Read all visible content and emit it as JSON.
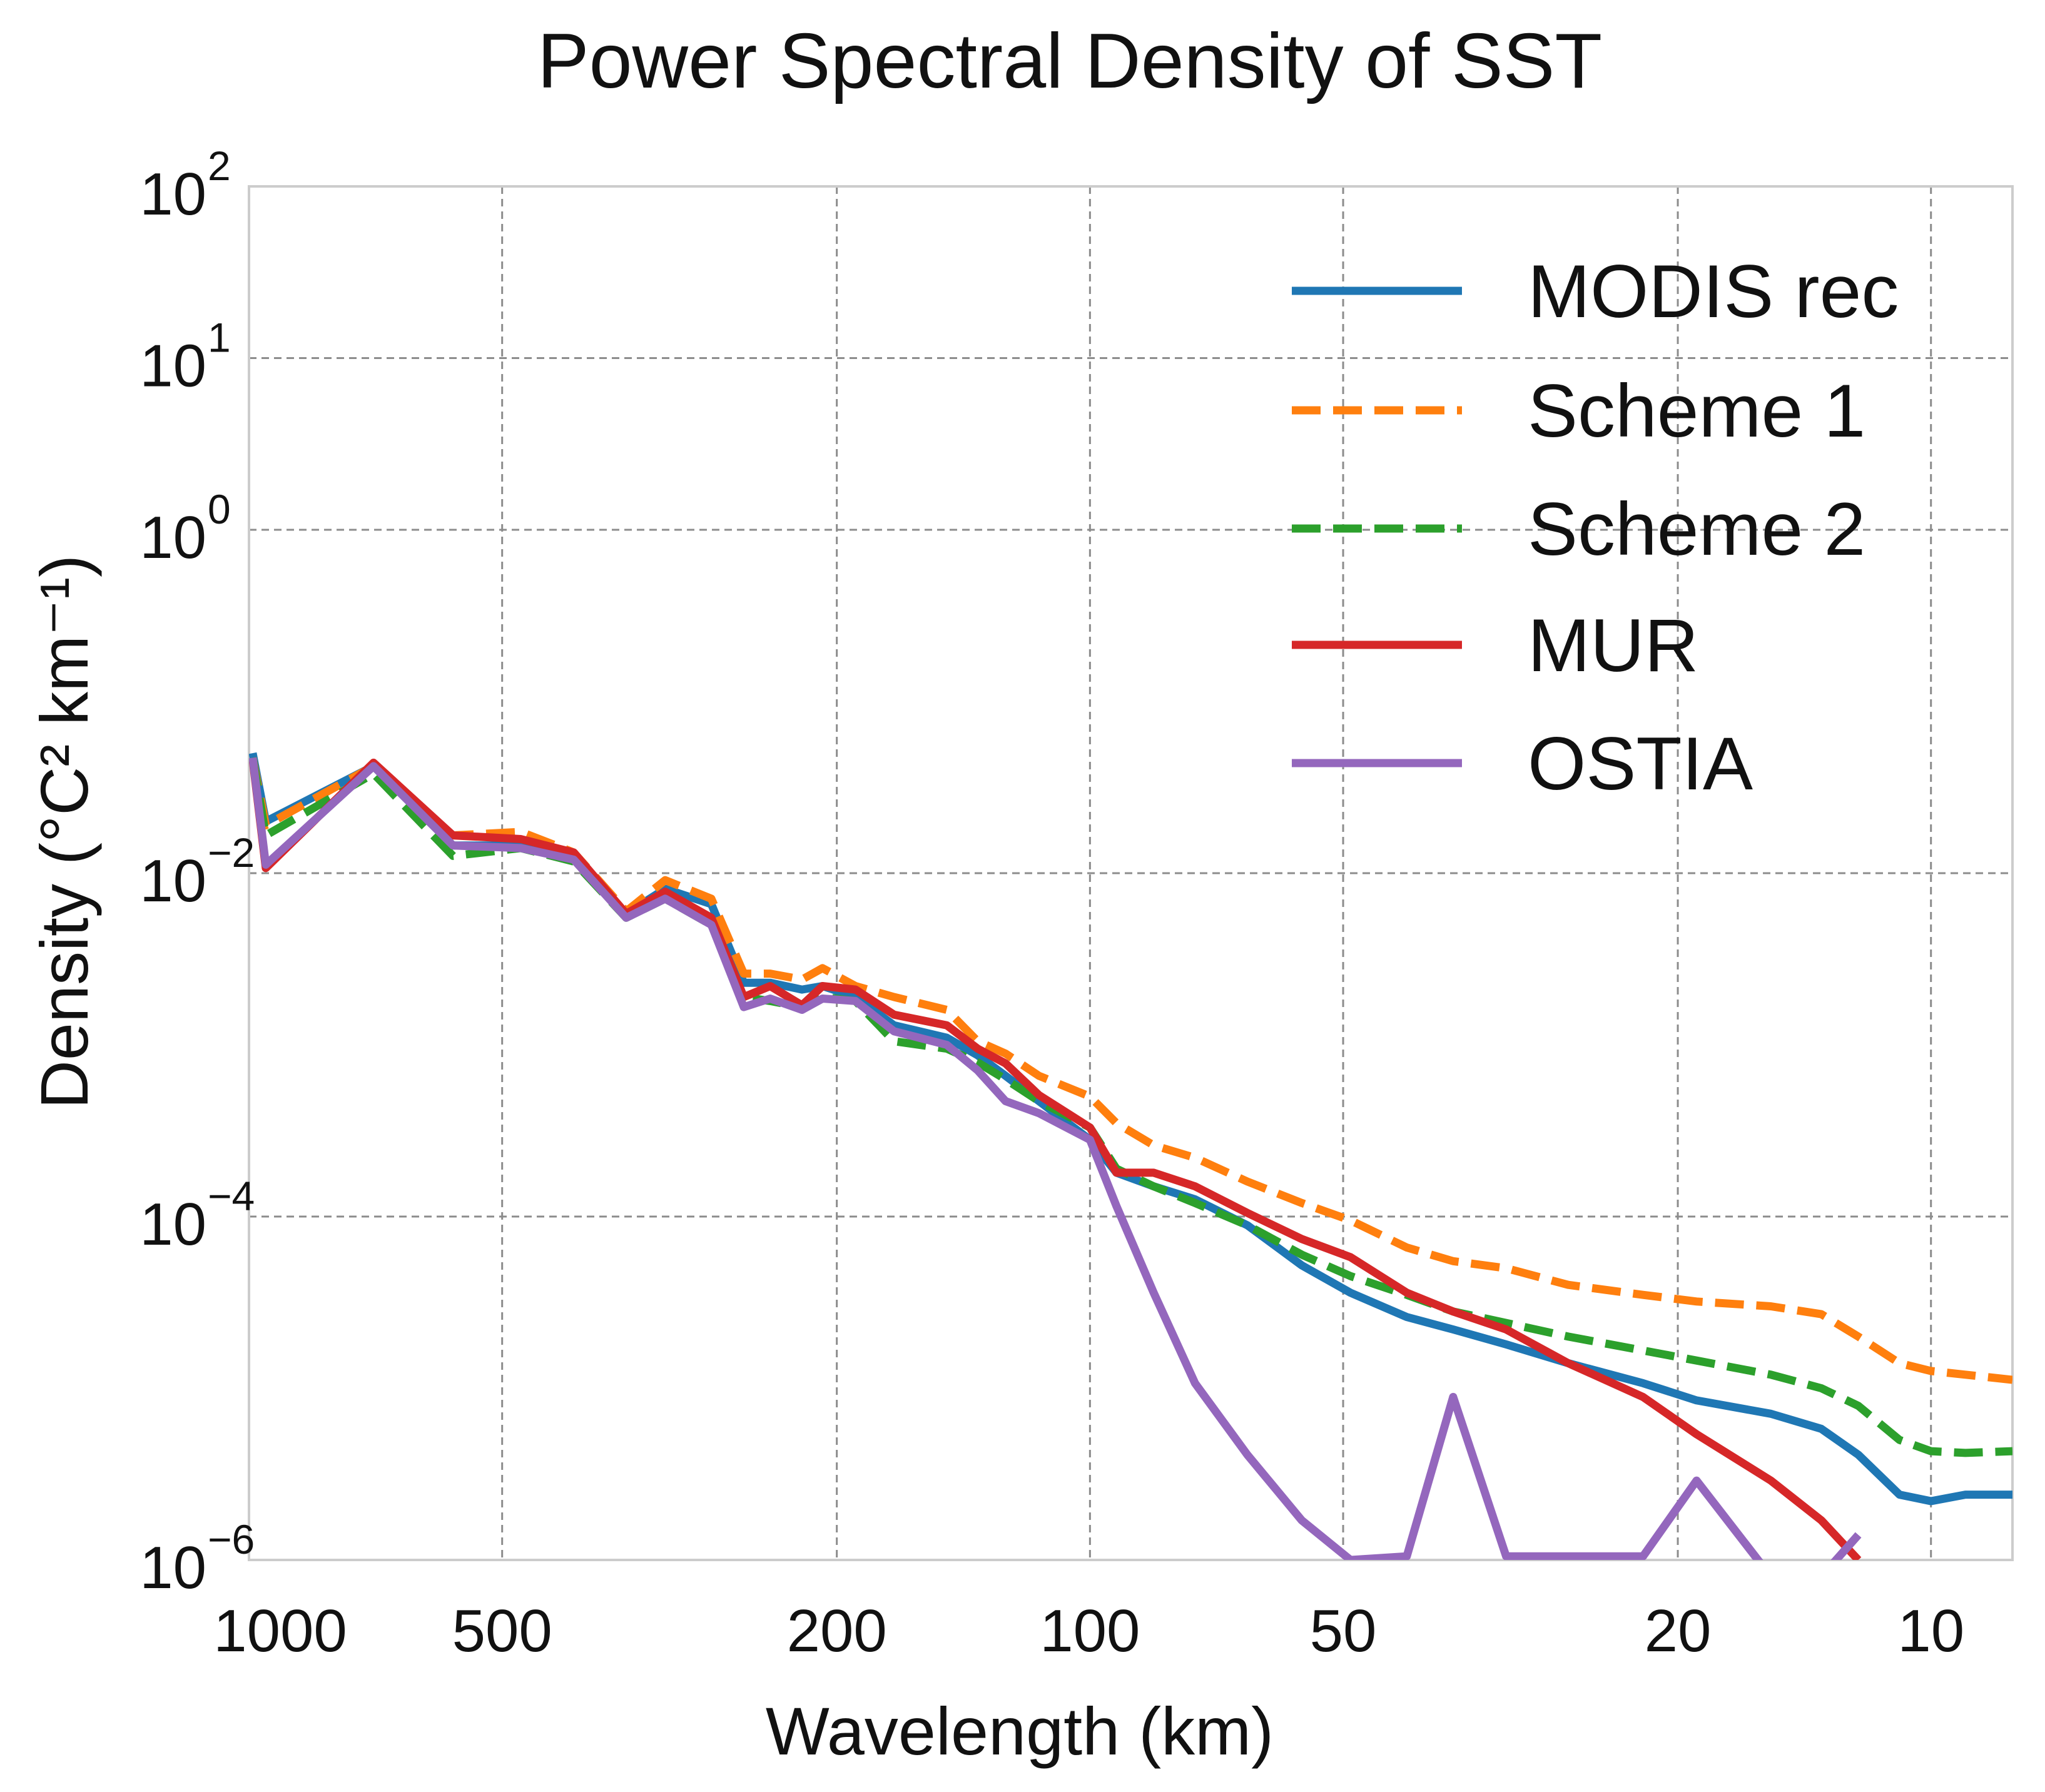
{
  "chart_data": {
    "type": "line",
    "title": "Power Spectral Density of SST",
    "xlabel": "Wavelength (km)",
    "ylabel": "Density (°C² km⁻¹)",
    "x_scale": "log",
    "x_reversed": true,
    "y_scale": "log",
    "xlim": [
      1000,
      8
    ],
    "ylim": [
      1e-06,
      100
    ],
    "grid": true,
    "legend_placement": "top-right",
    "x_ticks": [
      {
        "value": 1000,
        "label": "1000"
      },
      {
        "value": 500,
        "label": "500"
      },
      {
        "value": 200,
        "label": "200"
      },
      {
        "value": 100,
        "label": "100"
      },
      {
        "value": 50,
        "label": "50"
      },
      {
        "value": 20,
        "label": "20"
      },
      {
        "value": 10,
        "label": "10"
      }
    ],
    "y_ticks": [
      {
        "value": 100,
        "base": "10",
        "exp": "2"
      },
      {
        "value": 10,
        "base": "10",
        "exp": "1"
      },
      {
        "value": 1,
        "base": "10",
        "exp": "0"
      },
      {
        "value": 0.01,
        "base": "10",
        "exp": "−2"
      },
      {
        "value": 0.0001,
        "base": "10",
        "exp": "−4"
      },
      {
        "value": 1e-06,
        "base": "10",
        "exp": "−6"
      }
    ],
    "x": [
      990,
      955,
      711,
      572,
      475,
      411,
      356,
      320,
      282,
      258,
      240,
      220,
      208,
      190,
      171,
      148,
      136,
      126,
      115,
      100,
      93,
      84,
      75,
      65,
      56,
      49,
      42,
      37,
      32,
      27,
      22,
      19,
      15.5,
      13.5,
      12.2,
      10.9,
      10,
      9.1,
      8
    ],
    "series": [
      {
        "name": "MODIS rec",
        "color": "#1f77b4",
        "dash": "solid",
        "values": [
          0.05,
          0.02,
          0.042,
          0.0145,
          0.0145,
          0.012,
          0.0058,
          0.0081,
          0.0066,
          0.0023,
          0.0023,
          0.0021,
          0.0022,
          0.0019,
          0.0013,
          0.0011,
          0.00087,
          0.00066,
          0.00047,
          0.00028,
          0.00018,
          0.00015,
          0.000126,
          8.9e-05,
          5.2e-05,
          3.6e-05,
          2.6e-05,
          2.2e-05,
          1.8e-05,
          1.4e-05,
          1.07e-05,
          8.5e-06,
          7.1e-06,
          5.8e-06,
          4.1e-06,
          2.4e-06,
          2.2e-06,
          2.4e-06,
          2.4e-06
        ]
      },
      {
        "name": "Scheme 1",
        "color": "#ff7f0e",
        "dash": "dashed",
        "values": [
          0.047,
          0.019,
          0.042,
          0.0166,
          0.0174,
          0.0132,
          0.006,
          0.0091,
          0.0071,
          0.0026,
          0.0026,
          0.0024,
          0.0028,
          0.0022,
          0.0019,
          0.0016,
          0.00105,
          0.00089,
          0.00066,
          0.0005,
          0.00035,
          0.00026,
          0.00022,
          0.00016,
          0.00012,
          9.5e-05,
          6.6e-05,
          5.5e-05,
          5e-05,
          4e-05,
          3.5e-05,
          3.2e-05,
          3e-05,
          2.7e-05,
          2e-05,
          1.4e-05,
          1.26e-05,
          1.2e-05,
          1.12e-05
        ]
      },
      {
        "name": "Scheme 2",
        "color": "#2ca02c",
        "dash": "dashed",
        "values": [
          0.047,
          0.0166,
          0.038,
          0.0126,
          0.014,
          0.0117,
          0.0055,
          0.0071,
          0.005,
          0.0019,
          0.0018,
          0.00166,
          0.0019,
          0.0018,
          0.00105,
          0.00095,
          0.00079,
          0.00063,
          0.00047,
          0.00033,
          0.00019,
          0.00015,
          0.00012,
          8.9e-05,
          6e-05,
          4.5e-05,
          3.5e-05,
          2.8e-05,
          2.4e-05,
          2e-05,
          1.66e-05,
          1.45e-05,
          1.2e-05,
          1e-05,
          7.9e-06,
          5e-06,
          4.3e-06,
          4.2e-06,
          4.3e-06
        ]
      },
      {
        "name": "MUR",
        "color": "#d62728",
        "dash": "solid",
        "values": [
          0.046,
          0.0107,
          0.044,
          0.0166,
          0.0158,
          0.0132,
          0.0058,
          0.0078,
          0.0055,
          0.0019,
          0.0022,
          0.0017,
          0.0022,
          0.0021,
          0.0015,
          0.0013,
          0.00095,
          0.00078,
          0.00051,
          0.00033,
          0.00018,
          0.00018,
          0.00015,
          0.000105,
          7.4e-05,
          5.8e-05,
          3.6e-05,
          2.8e-05,
          2.2e-05,
          1.4e-05,
          8.9e-06,
          5.4e-06,
          2.9e-06,
          1.7e-06,
          1e-06,
          null,
          null,
          null,
          null
        ]
      },
      {
        "name": "OSTIA",
        "color": "#9467bd",
        "dash": "solid",
        "values": [
          0.047,
          0.0112,
          0.042,
          0.0145,
          0.014,
          0.012,
          0.0055,
          0.0071,
          0.005,
          0.00166,
          0.00186,
          0.0016,
          0.00186,
          0.0018,
          0.0012,
          0.001,
          0.00071,
          0.00047,
          0.0004,
          0.00028,
          0.000115,
          3.6e-05,
          1.07e-05,
          4.1e-06,
          1.7e-06,
          1e-06,
          1.05e-06,
          8.9e-06,
          1.05e-06,
          1.05e-06,
          1.05e-06,
          2.9e-06,
          8e-07,
          8e-07,
          1.4e-06,
          null,
          null,
          null,
          null
        ]
      }
    ]
  }
}
